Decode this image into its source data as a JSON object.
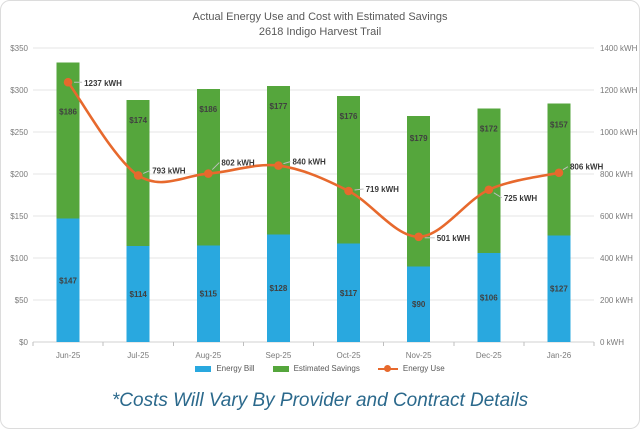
{
  "chart_data": {
    "type": "combo-stacked-bar-line",
    "title": "Actual Energy Use and Cost with Estimated Savings",
    "subtitle": "2618 Indigo Harvest Trail",
    "categories": [
      "Jun-25",
      "Jul-25",
      "Aug-25",
      "Sep-25",
      "Oct-25",
      "Nov-25",
      "Dec-25",
      "Jan-26"
    ],
    "series": [
      {
        "name": "Energy Bill",
        "chart_type": "bar",
        "stack": "cost",
        "axis": "left",
        "color": "#29a8df",
        "label_color": "#404040",
        "label_prefix": "$",
        "values": [
          147,
          114,
          115,
          128,
          117,
          90,
          106,
          127
        ]
      },
      {
        "name": "Estimated Savings",
        "chart_type": "bar",
        "stack": "cost",
        "axis": "left",
        "color": "#55a63c",
        "label_color": "#404040",
        "label_prefix": "$",
        "values": [
          186,
          174,
          186,
          177,
          176,
          179,
          172,
          157
        ]
      },
      {
        "name": "Energy Use",
        "chart_type": "line",
        "axis": "right",
        "color": "#e7692d",
        "label_color": "#383838",
        "label_suffix": " kWH",
        "smooth": true,
        "values": [
          1237,
          793,
          802,
          840,
          719,
          501,
          725,
          806
        ]
      }
    ],
    "left_axis": {
      "min": 0,
      "max": 350,
      "ticks": [
        "$0",
        "$50",
        "$100",
        "$150",
        "$200",
        "$250",
        "$300",
        "$350"
      ]
    },
    "right_axis": {
      "min": 0,
      "max": 1400,
      "ticks": [
        "0 kWH",
        "200 kWH",
        "400 kWH",
        "600 kWH",
        "800 kWH",
        "1000 kWH",
        "1200 kWH",
        "1400 kWH"
      ]
    },
    "gridlines": "horizontal",
    "legend_position": "bottom",
    "legend": [
      "Energy Bill",
      "Estimated Savings",
      "Energy Use"
    ]
  },
  "footnote": {
    "text": "*Costs Will Vary By Provider and Contract Details",
    "color": "#2b698c"
  }
}
